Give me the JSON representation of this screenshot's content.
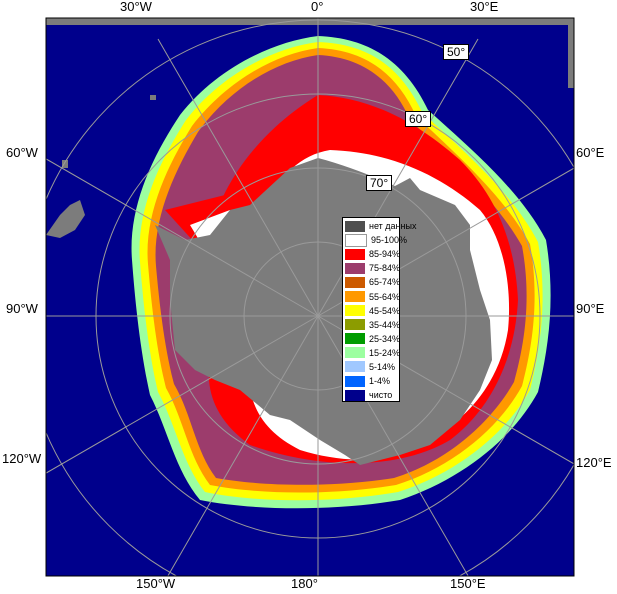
{
  "map": {
    "ocean_color": "#00008c",
    "land_color": "#7c7c7c",
    "grid_color": "#9a9a9a"
  },
  "longitude_labels": {
    "top_30w": "30°W",
    "top_0": "0°",
    "top_30e": "30°E",
    "left_60w": "60°W",
    "left_90w": "90°W",
    "left_120w": "120°W",
    "right_60e": "60°E",
    "right_90e": "90°E",
    "right_120e": "120°E",
    "bottom_150w": "150°W",
    "bottom_180": "180°",
    "bottom_150e": "150°E"
  },
  "latitude_labels": {
    "lat50": "50°",
    "lat60": "60°",
    "lat70": "70°"
  },
  "legend": [
    {
      "label": "нет данных",
      "color": "#4f4f4f"
    },
    {
      "label": "95-100%",
      "color": "#ffffff"
    },
    {
      "label": "85-94%",
      "color": "#ff0000"
    },
    {
      "label": "75-84%",
      "color": "#9c3c6c"
    },
    {
      "label": "65-74%",
      "color": "#cc5a00"
    },
    {
      "label": "55-64%",
      "color": "#ff9900"
    },
    {
      "label": "45-54%",
      "color": "#ffff00"
    },
    {
      "label": "35-44%",
      "color": "#8c9c00"
    },
    {
      "label": "25-34%",
      "color": "#009c00"
    },
    {
      "label": "15-24%",
      "color": "#9cffa0"
    },
    {
      "label": "5-14%",
      "color": "#a0c8ff"
    },
    {
      "label": "1-4%",
      "color": "#0064ff"
    },
    {
      "label": "чисто",
      "color": "#00008c"
    }
  ]
}
